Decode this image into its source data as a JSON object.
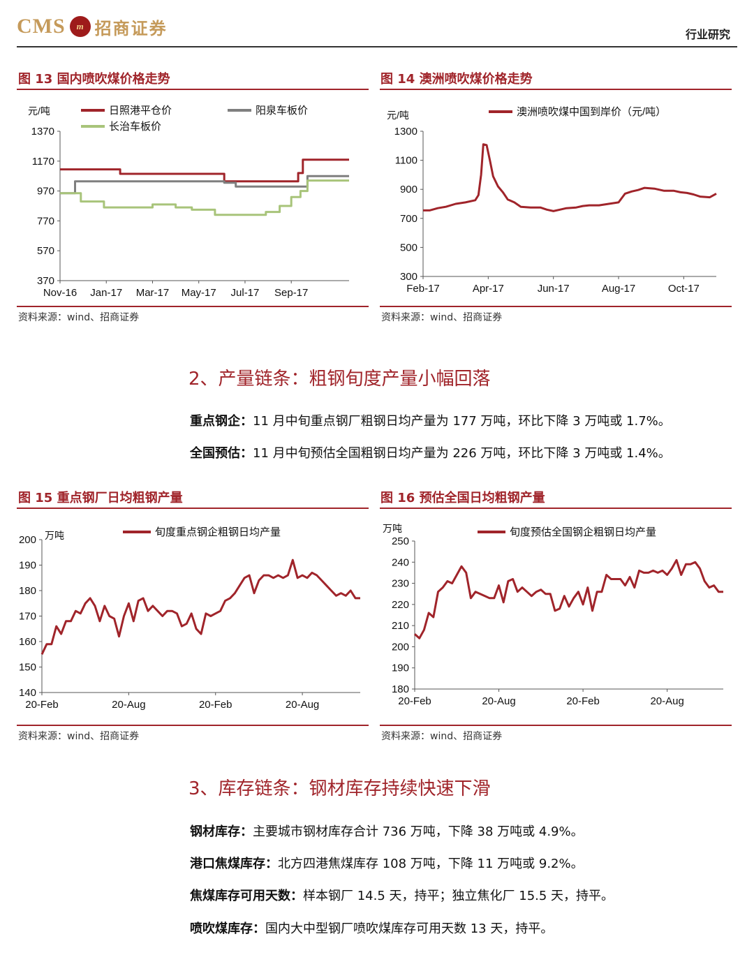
{
  "header": {
    "logo_latin": "CMS",
    "logo_mark": "m",
    "logo_cn": "招商证券",
    "right_label": "行业研究"
  },
  "fig13": {
    "title": "图 13 国内喷吹煤价格走势",
    "source": "资料来源：wind、招商证券"
  },
  "fig14": {
    "title": "图 14 澳洲喷吹煤价格走势",
    "source": "资料来源：wind、招商证券"
  },
  "fig15": {
    "title": "图 15 重点钢厂日均粗钢产量",
    "source": "资料来源：wind、招商证券"
  },
  "fig16": {
    "title": "图 16 预估全国日均粗钢产量",
    "source": "资料来源：wind、招商证券"
  },
  "section2": {
    "title": "2、产量链条：粗钢旬度产量小幅回落",
    "items": [
      {
        "label": "重点钢企：",
        "text": "11 月中旬重点钢厂粗钢日均产量为 177 万吨，环比下降 3 万吨或 1.7%。"
      },
      {
        "label": "全国预估：",
        "text": "11 月中旬预估全国粗钢日均产量为 226 万吨，环比下降 3 万吨或 1.4%。"
      }
    ]
  },
  "section3": {
    "title": "3、库存链条：钢材库存持续快速下滑",
    "items": [
      {
        "label": "钢材库存：",
        "text": "主要城市钢材库存合计 736 万吨，下降 38 万吨或 4.9%。"
      },
      {
        "label": "港口焦煤库存：",
        "text": "北方四港焦煤库存 108 万吨，下降 11 万吨或 9.2%。"
      },
      {
        "label": "焦煤库存可用天数：",
        "text": "样本钢厂 14.5 天，持平；独立焦化厂 15.5 天，持平。"
      },
      {
        "label": "喷吹煤库存：",
        "text": "国内大中型钢厂喷吹煤库存可用天数 13 天，持平。"
      }
    ]
  },
  "colors": {
    "accent": "#a0242a",
    "series_red": "#a0242a",
    "series_gray": "#7f7f7f",
    "series_green": "#a8c47a",
    "logo_gold": "#c59a5a"
  },
  "chart_data": [
    {
      "id": "fig13",
      "type": "line",
      "ylabel": "元/吨",
      "ylim": [
        370,
        1370
      ],
      "yticks": [
        1370,
        1170,
        970,
        770,
        570,
        370
      ],
      "x_tick_labels": [
        "Nov-16",
        "Jan-17",
        "Mar-17",
        "May-17",
        "Jul-17",
        "Sep-17"
      ],
      "x_tick_index": [
        0,
        2,
        4,
        6,
        8,
        10
      ],
      "x_range": [
        0,
        12.5
      ],
      "legend": "top",
      "series": [
        {
          "name": "日照港平仓价",
          "color": "#a0242a",
          "x": [
            0,
            2.6,
            2.6,
            7.1,
            7.1,
            10.3,
            10.3,
            10.5,
            10.5,
            12.5
          ],
          "y": [
            1115,
            1115,
            1085,
            1085,
            1035,
            1035,
            1090,
            1090,
            1180,
            1180
          ]
        },
        {
          "name": "阳泉车板价",
          "color": "#7f7f7f",
          "x": [
            0,
            0.65,
            0.65,
            7.1,
            7.1,
            7.6,
            7.6,
            10.7,
            10.7,
            12.5
          ],
          "y": [
            955,
            955,
            1035,
            1035,
            1025,
            1025,
            1000,
            1000,
            1070,
            1070
          ]
        },
        {
          "name": "长治车板价",
          "color": "#a8c47a",
          "x": [
            0,
            0.9,
            0.9,
            1.9,
            1.9,
            4.0,
            4.0,
            5.0,
            5.0,
            5.7,
            5.7,
            6.7,
            6.7,
            7.5,
            7.5,
            8.9,
            8.9,
            9.5,
            9.5,
            10.0,
            10.0,
            10.4,
            10.4,
            10.7,
            10.7,
            12.5
          ],
          "y": [
            955,
            955,
            900,
            900,
            860,
            860,
            880,
            880,
            860,
            860,
            845,
            845,
            810,
            810,
            810,
            810,
            830,
            830,
            870,
            870,
            930,
            930,
            970,
            970,
            1040,
            1040
          ]
        }
      ]
    },
    {
      "id": "fig14",
      "type": "line",
      "ylabel": "元/吨",
      "ylim": [
        300,
        1300
      ],
      "yticks": [
        1300,
        1100,
        900,
        700,
        500,
        300
      ],
      "x_tick_labels": [
        "Feb-17",
        "Apr-17",
        "Jun-17",
        "Aug-17",
        "Oct-17"
      ],
      "x_tick_index": [
        0,
        2,
        4,
        6,
        8
      ],
      "x_range": [
        0,
        9.0
      ],
      "legend": "top",
      "series": [
        {
          "name": "澳洲喷吹煤中国到岸价（元/吨）",
          "color": "#a0242a",
          "x": [
            0,
            0.2,
            0.45,
            0.7,
            1.0,
            1.3,
            1.6,
            1.7,
            1.78,
            1.85,
            1.95,
            2.05,
            2.15,
            2.3,
            2.45,
            2.6,
            2.8,
            3.0,
            3.3,
            3.6,
            3.8,
            4.0,
            4.2,
            4.4,
            4.7,
            4.9,
            5.1,
            5.4,
            5.7,
            6.0,
            6.2,
            6.4,
            6.6,
            6.8,
            7.1,
            7.4,
            7.7,
            7.9,
            8.1,
            8.3,
            8.5,
            8.8,
            9.0
          ],
          "y": [
            755,
            755,
            770,
            780,
            800,
            810,
            825,
            860,
            1000,
            1210,
            1205,
            1100,
            990,
            920,
            880,
            830,
            810,
            780,
            775,
            775,
            760,
            750,
            760,
            770,
            775,
            785,
            790,
            790,
            800,
            810,
            870,
            885,
            895,
            910,
            905,
            890,
            890,
            880,
            875,
            865,
            850,
            845,
            870
          ]
        }
      ]
    },
    {
      "id": "fig15",
      "type": "line",
      "ylabel": "万吨",
      "ylim": [
        140,
        200
      ],
      "yticks": [
        200,
        190,
        180,
        170,
        160,
        150,
        140
      ],
      "x_tick_labels": [
        "20-Feb",
        "20-Aug",
        "20-Feb",
        "20-Aug"
      ],
      "x_tick_index": [
        0,
        18,
        36,
        54
      ],
      "x_range": [
        0,
        66
      ],
      "legend": "top",
      "series": [
        {
          "name": "旬度重点钢企粗钢日均产量",
          "color": "#a0242a",
          "x": [
            0,
            1,
            2,
            3,
            4,
            5,
            6,
            7,
            8,
            9,
            10,
            11,
            12,
            13,
            14,
            15,
            16,
            17,
            18,
            19,
            20,
            21,
            22,
            23,
            24,
            25,
            26,
            27,
            28,
            29,
            30,
            31,
            32,
            33,
            34,
            35,
            36,
            37,
            38,
            39,
            40,
            41,
            42,
            43,
            44,
            45,
            46,
            47,
            48,
            49,
            50,
            51,
            52,
            53,
            54,
            55,
            56,
            57,
            58,
            59,
            60,
            61,
            62,
            63,
            64,
            65,
            66
          ],
          "y": [
            155,
            159,
            159,
            166,
            163,
            168,
            168,
            172,
            171,
            175,
            177,
            174,
            168,
            174,
            170,
            169,
            162,
            170,
            175,
            168,
            176,
            177,
            172,
            174,
            172,
            170,
            172,
            172,
            171,
            166,
            167,
            171,
            165,
            163,
            171,
            170,
            171,
            172,
            176,
            177,
            179,
            182,
            185,
            186,
            179,
            184,
            186,
            186,
            185,
            186,
            185,
            186,
            192,
            185,
            186,
            185,
            187,
            186,
            184,
            182,
            180,
            178,
            179,
            178,
            180,
            177,
            177
          ]
        }
      ]
    },
    {
      "id": "fig16",
      "type": "line",
      "ylabel": "万吨",
      "ylim": [
        180,
        250
      ],
      "yticks": [
        250,
        240,
        230,
        220,
        210,
        200,
        190,
        180
      ],
      "x_tick_labels": [
        "20-Feb",
        "20-Aug",
        "20-Feb",
        "20-Aug"
      ],
      "x_tick_index": [
        0,
        18,
        36,
        54
      ],
      "x_range": [
        0,
        66
      ],
      "legend": "top",
      "series": [
        {
          "name": "旬度预估全国钢企粗钢日均产量",
          "color": "#a0242a",
          "x": [
            0,
            1,
            2,
            3,
            4,
            5,
            6,
            7,
            8,
            9,
            10,
            11,
            12,
            13,
            14,
            15,
            16,
            17,
            18,
            19,
            20,
            21,
            22,
            23,
            24,
            25,
            26,
            27,
            28,
            29,
            30,
            31,
            32,
            33,
            34,
            35,
            36,
            37,
            38,
            39,
            40,
            41,
            42,
            43,
            44,
            45,
            46,
            47,
            48,
            49,
            50,
            51,
            52,
            53,
            54,
            55,
            56,
            57,
            58,
            59,
            60,
            61,
            62,
            63,
            64,
            65,
            66
          ],
          "y": [
            206,
            204,
            208,
            216,
            214,
            226,
            228,
            231,
            230,
            234,
            238,
            235,
            223,
            226,
            225,
            224,
            223,
            223,
            229,
            221,
            231,
            232,
            226,
            228,
            226,
            224,
            226,
            227,
            225,
            225,
            217,
            218,
            224,
            219,
            223,
            226,
            220,
            228,
            217,
            226,
            226,
            234,
            232,
            232,
            232,
            229,
            233,
            228,
            236,
            235,
            235,
            236,
            235,
            236,
            234,
            237,
            241,
            234,
            239,
            239,
            240,
            237,
            231,
            228,
            229,
            226,
            226
          ]
        }
      ]
    }
  ]
}
